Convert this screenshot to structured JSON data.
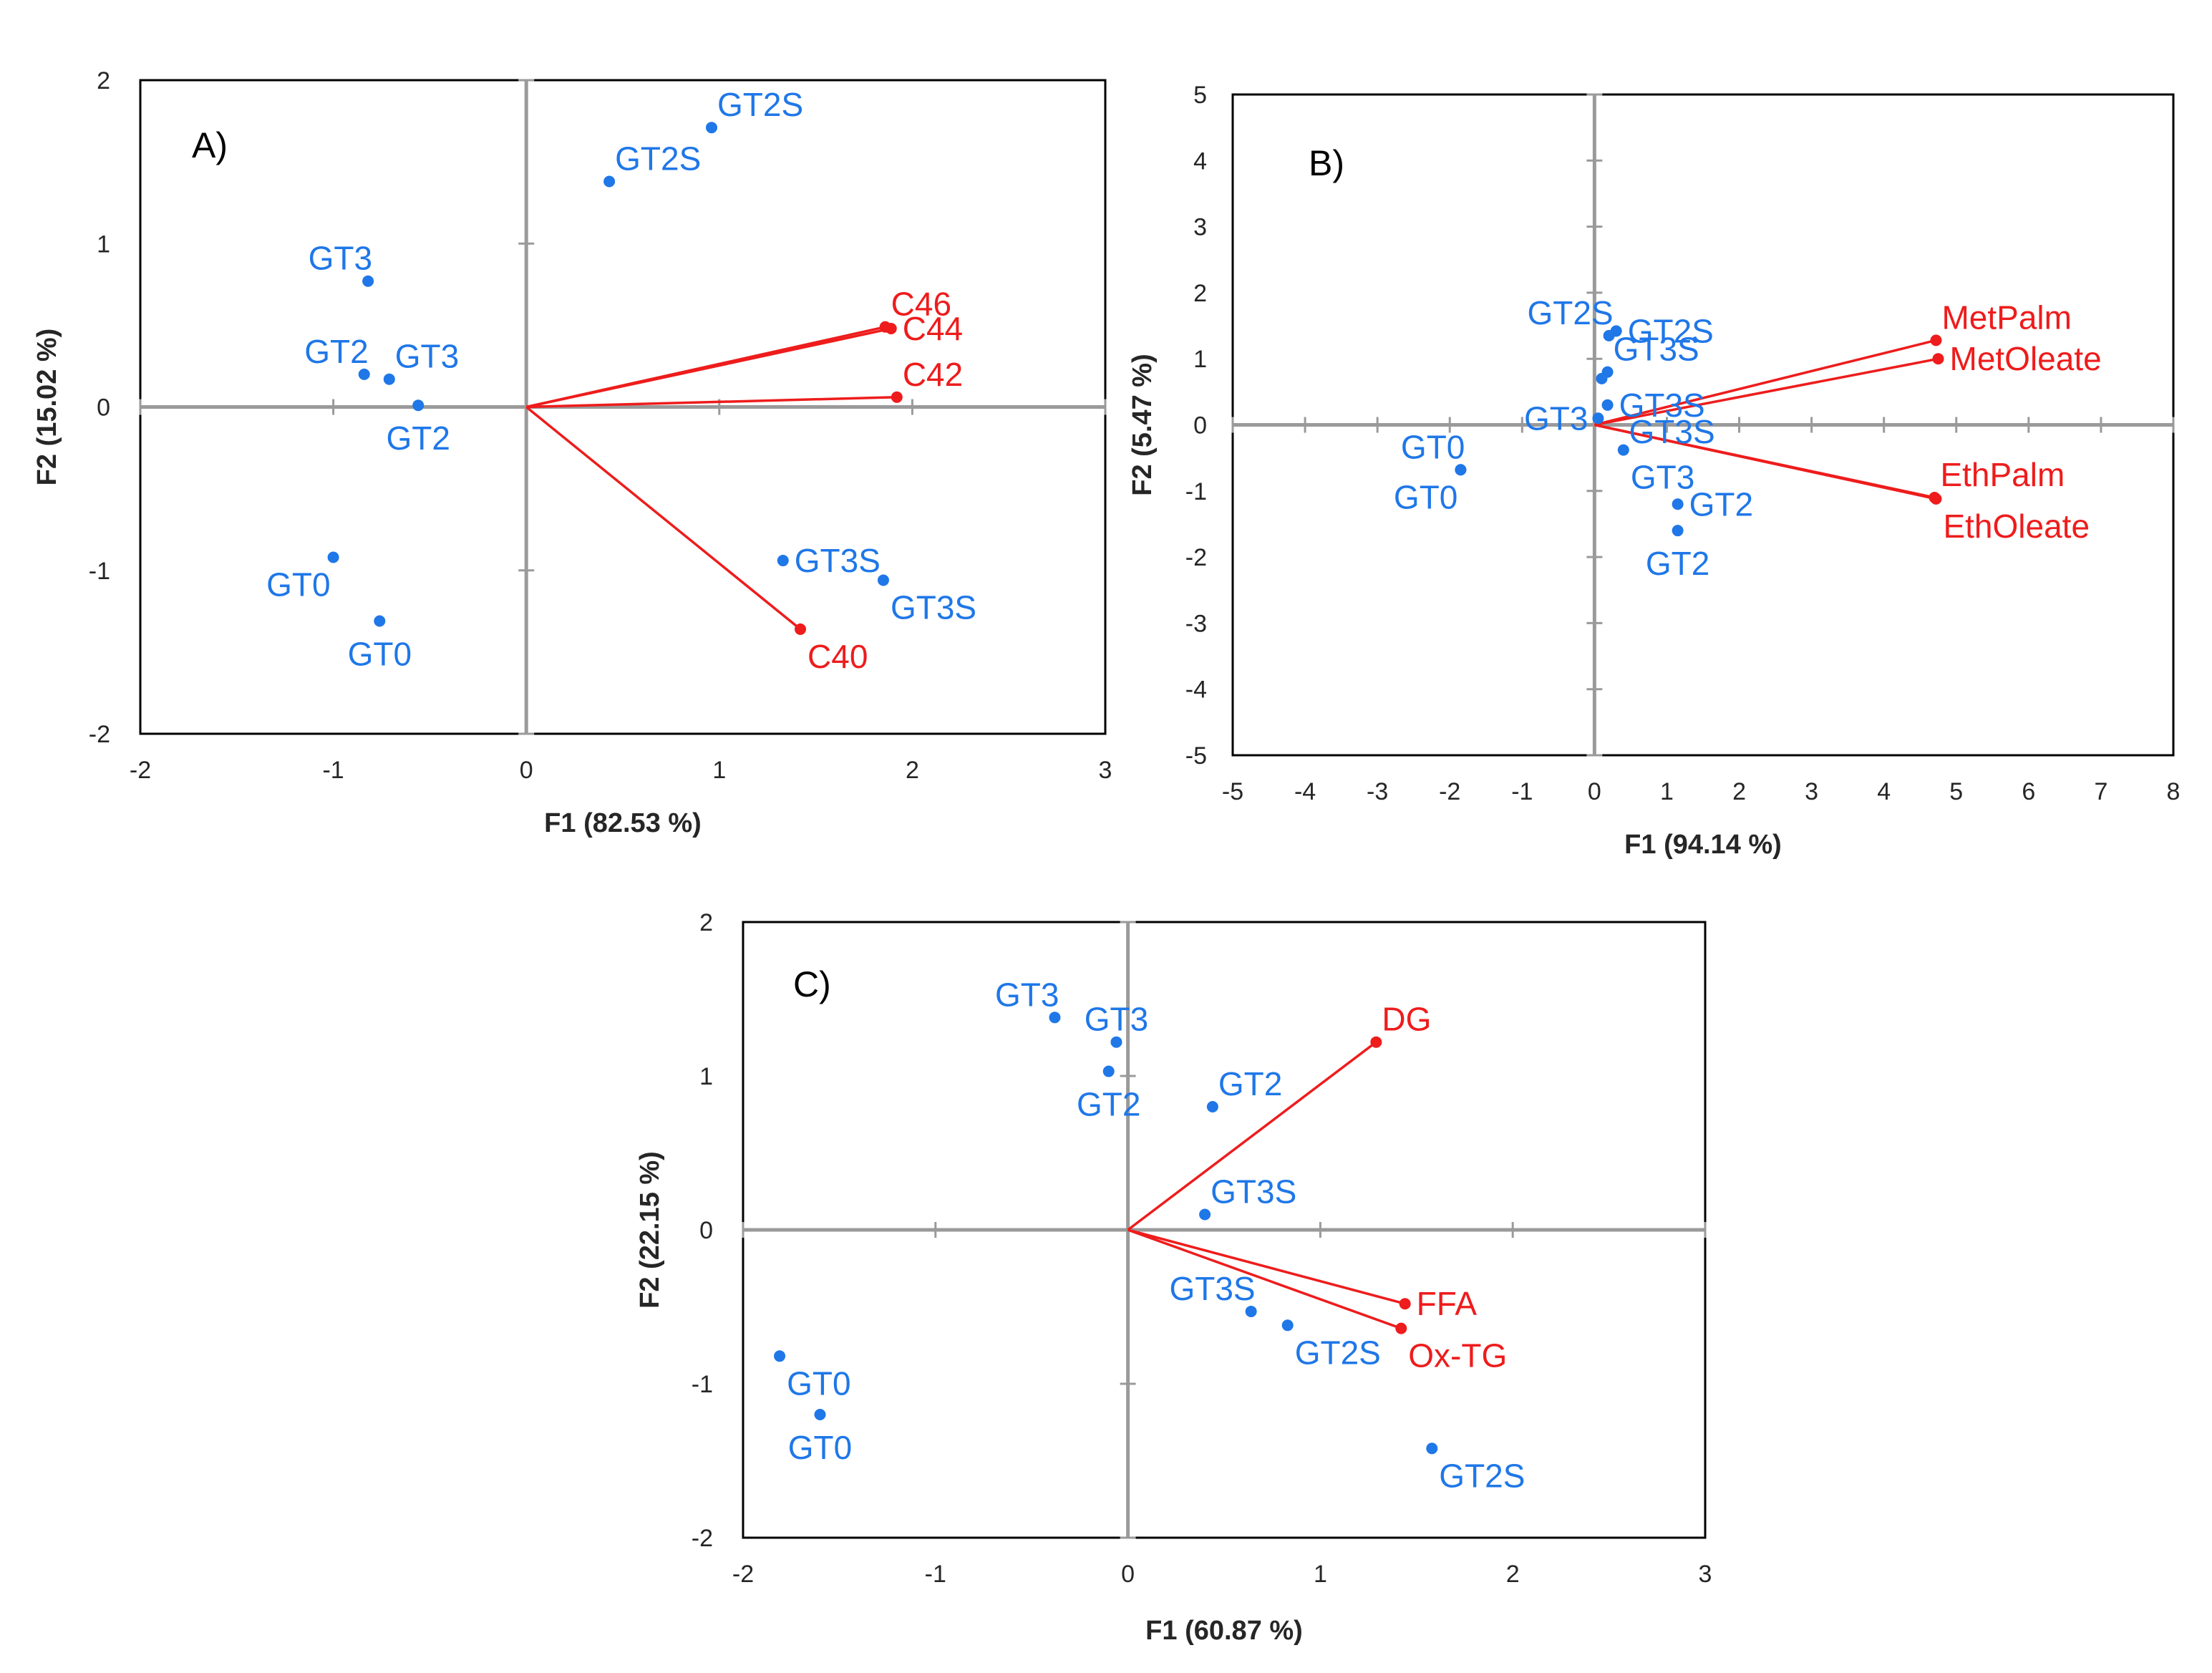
{
  "colors": {
    "observation": "#1f77e8",
    "variable": "#ee1c1c",
    "axis": "#9a9a9a",
    "frame": "#000000"
  },
  "chart_data": [
    {
      "type": "scatter",
      "panel_label": "A)",
      "xlabel": "F1 (82.53 %)",
      "ylabel": "F2 (15.02 %)",
      "xlim": [
        -2,
        3
      ],
      "ylim": [
        -2,
        2
      ],
      "xticks": [
        -2,
        -1,
        0,
        1,
        2,
        3
      ],
      "yticks": [
        -2,
        -1,
        0,
        1,
        2
      ],
      "observations": [
        {
          "label": "GT2S",
          "x": 0.96,
          "y": 1.71,
          "anchor": "up-right"
        },
        {
          "label": "GT2S",
          "x": 0.43,
          "y": 1.38,
          "anchor": "up-right"
        },
        {
          "label": "GT3",
          "x": -0.82,
          "y": 0.77,
          "anchor": "up-left"
        },
        {
          "label": "GT2",
          "x": -0.84,
          "y": 0.2,
          "anchor": "up-left"
        },
        {
          "label": "GT3",
          "x": -0.71,
          "y": 0.17,
          "anchor": "up-right"
        },
        {
          "label": "GT2",
          "x": -0.56,
          "y": 0.01,
          "anchor": "down-center"
        },
        {
          "label": "GT0",
          "x": -1.0,
          "y": -0.92,
          "anchor": "down-left"
        },
        {
          "label": "GT0",
          "x": -0.76,
          "y": -1.31,
          "anchor": "down-center"
        },
        {
          "label": "GT3S",
          "x": 1.33,
          "y": -0.94,
          "anchor": "right"
        },
        {
          "label": "GT3S",
          "x": 1.85,
          "y": -1.06,
          "anchor": "down-right"
        }
      ],
      "variables": [
        {
          "label": "C46",
          "x": 1.86,
          "y": 0.49,
          "anchor": "up-right"
        },
        {
          "label": "C44",
          "x": 1.89,
          "y": 0.48,
          "anchor": "right"
        },
        {
          "label": "C42",
          "x": 1.92,
          "y": 0.06,
          "anchor": "up-right"
        },
        {
          "label": "C40",
          "x": 1.42,
          "y": -1.36,
          "anchor": "down-right"
        }
      ]
    },
    {
      "type": "scatter",
      "panel_label": "B)",
      "xlabel": "F1 (94.14 %)",
      "ylabel": "F2 (5.47 %)",
      "xlim": [
        -5,
        8
      ],
      "ylim": [
        -5,
        5
      ],
      "xticks": [
        -5,
        -4,
        -3,
        -2,
        -1,
        0,
        1,
        2,
        3,
        4,
        5,
        6,
        7,
        8
      ],
      "yticks": [
        -5,
        -4,
        -3,
        -2,
        -1,
        0,
        1,
        2,
        3,
        4,
        5
      ],
      "observations": [
        {
          "label": "GT2S",
          "x": 0.3,
          "y": 1.42,
          "anchor": "right"
        },
        {
          "label": "GT2S",
          "x": 0.2,
          "y": 1.35,
          "anchor": "up-left"
        },
        {
          "label": "GT3S",
          "x": 0.18,
          "y": 0.8,
          "anchor": "up-right"
        },
        {
          "label": "GT3S",
          "x": 0.1,
          "y": 0.7,
          "anchor": "none"
        },
        {
          "label": "GT3S",
          "x": 0.18,
          "y": 0.3,
          "anchor": "right"
        },
        {
          "label": "GT3",
          "x": 0.05,
          "y": 0.1,
          "anchor": "left"
        },
        {
          "label": "GT3",
          "x": 0.4,
          "y": -0.38,
          "anchor": "down-right"
        },
        {
          "label": "GT0",
          "x": -1.85,
          "y": -0.68,
          "anchor": "up-left"
        },
        {
          "label": "GT0",
          "x": -1.85,
          "y": -0.68,
          "anchor": "down-left"
        },
        {
          "label": "GT2",
          "x": 1.15,
          "y": -1.2,
          "anchor": "right"
        },
        {
          "label": "GT2",
          "x": 1.15,
          "y": -1.6,
          "anchor": "down-center"
        }
      ],
      "variables": [
        {
          "label": "MetPalm",
          "x": 4.72,
          "y": 1.28,
          "anchor": "up-right"
        },
        {
          "label": "MetOleate",
          "x": 4.75,
          "y": 1.0,
          "anchor": "right"
        },
        {
          "label": "EthPalm",
          "x": 4.7,
          "y": -1.1,
          "anchor": "up-right"
        },
        {
          "label": "EthOleate",
          "x": 4.72,
          "y": -1.12,
          "anchor": "down-right"
        }
      ]
    },
    {
      "type": "scatter",
      "panel_label": "C)",
      "xlabel": "F1 (60.87 %)",
      "ylabel": "F2 (22.15 %)",
      "xlim": [
        -2,
        3
      ],
      "ylim": [
        -2,
        2
      ],
      "xticks": [
        -2,
        -1,
        0,
        1,
        2,
        3
      ],
      "yticks": [
        -2,
        -1,
        0,
        1,
        2
      ],
      "observations": [
        {
          "label": "GT3",
          "x": -0.38,
          "y": 1.38,
          "anchor": "up-left"
        },
        {
          "label": "GT3",
          "x": -0.06,
          "y": 1.22,
          "anchor": "up-center"
        },
        {
          "label": "GT2",
          "x": -0.1,
          "y": 1.03,
          "anchor": "down-center"
        },
        {
          "label": "GT2",
          "x": 0.44,
          "y": 0.8,
          "anchor": "up-right"
        },
        {
          "label": "GT3S",
          "x": 0.4,
          "y": 0.1,
          "anchor": "up-right"
        },
        {
          "label": "GT3S",
          "x": 0.64,
          "y": -0.53,
          "anchor": "up-left"
        },
        {
          "label": "GT2S",
          "x": 0.83,
          "y": -0.62,
          "anchor": "down-right"
        },
        {
          "label": "GT0",
          "x": -1.81,
          "y": -0.82,
          "anchor": "down-right"
        },
        {
          "label": "GT0",
          "x": -1.6,
          "y": -1.2,
          "anchor": "down-center"
        },
        {
          "label": "GT2S",
          "x": 1.58,
          "y": -1.42,
          "anchor": "down-right"
        }
      ],
      "variables": [
        {
          "label": "DG",
          "x": 1.29,
          "y": 1.22,
          "anchor": "up-right"
        },
        {
          "label": "FFA",
          "x": 1.44,
          "y": -0.48,
          "anchor": "right"
        },
        {
          "label": "Ox-TG",
          "x": 1.42,
          "y": -0.64,
          "anchor": "down-right"
        }
      ]
    }
  ]
}
